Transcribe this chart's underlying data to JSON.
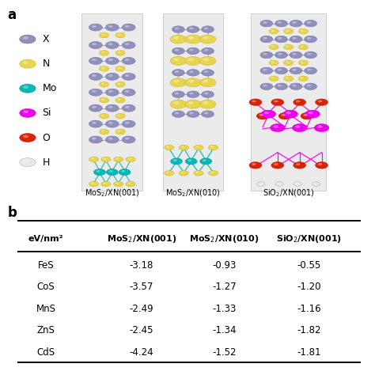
{
  "panel_a_label": "a",
  "panel_b_label": "b",
  "legend_items": [
    {
      "label": "X",
      "color": "#9090bb",
      "edge": "#7070aa"
    },
    {
      "label": "N",
      "color": "#e8d44d",
      "edge": "#c8b400"
    },
    {
      "label": "Mo",
      "color": "#00b8b8",
      "edge": "#009090"
    },
    {
      "label": "Si",
      "color": "#ee00ee",
      "edge": "#cc00cc"
    },
    {
      "label": "O",
      "color": "#dd2200",
      "edge": "#bb1100"
    },
    {
      "label": "H",
      "color": "#e8e8e8",
      "edge": "#aaaaaa"
    }
  ],
  "image_labels": [
    "MoS$_2$/XN(001)",
    "MoS$_2$/XN(010)",
    "SiO$_2$/XN(001)"
  ],
  "table_header": [
    "eV/nm²",
    "MoS$_2$/XN(001)",
    "MoS$_2$/XN(010)",
    "SiO$_2$/XN(001)"
  ],
  "table_rows": [
    [
      "FeS",
      "-3.18",
      "-0.93",
      "-0.55"
    ],
    [
      "CoS",
      "-3.57",
      "-1.27",
      "-1.20"
    ],
    [
      "MnS",
      "-2.49",
      "-1.33",
      "-1.16"
    ],
    [
      "ZnS",
      "-2.45",
      "-1.34",
      "-1.82"
    ],
    [
      "CdS",
      "-4.24",
      "-1.52",
      "-1.81"
    ]
  ],
  "bg": "#ffffff",
  "box_bg": "#ebebeb",
  "fig_width": 4.74,
  "fig_height": 4.74
}
